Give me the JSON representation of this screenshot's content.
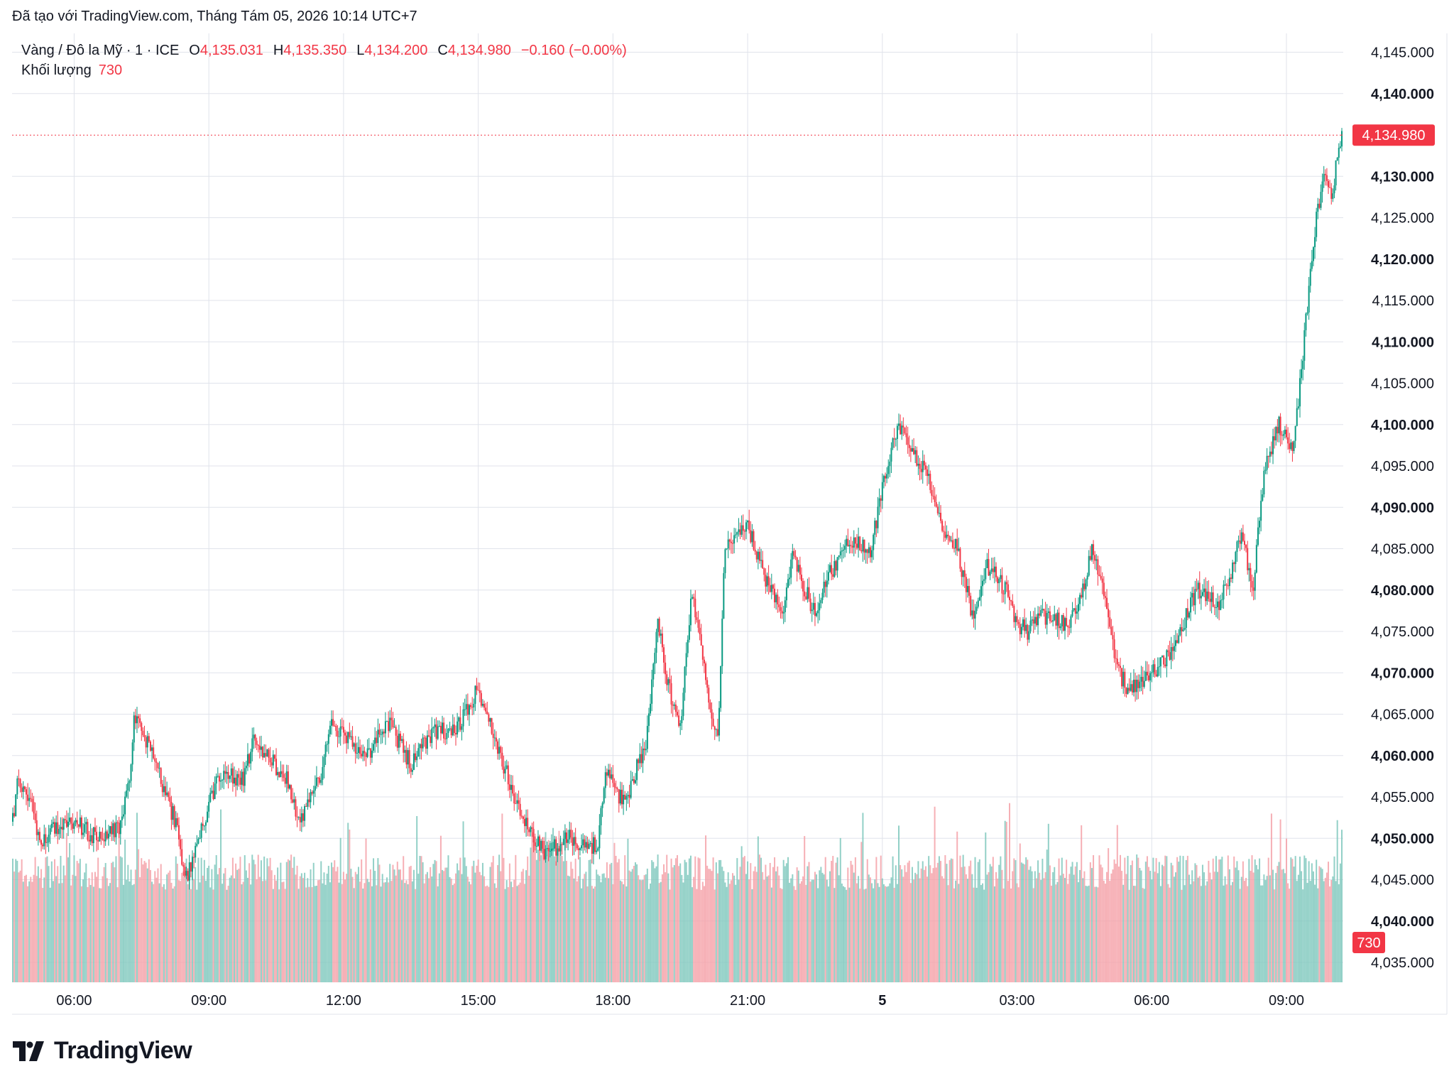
{
  "header": {
    "caption": "Đã tạo với TradingView.com, Tháng Tám 05, 2026 10:14 UTC+7"
  },
  "legend": {
    "symbol": "Vàng / Đô la Mỹ · 1 · ICE",
    "o_label": "O",
    "o_value": "4,135.031",
    "h_label": "H",
    "h_value": "4,135.350",
    "l_label": "L",
    "l_value": "4,134.200",
    "c_label": "C",
    "c_value": "4,134.980",
    "change": "−0.160 (−0.00%)",
    "volume_label": "Khối lượng",
    "volume_value": "730"
  },
  "brand": {
    "name": "TradingView",
    "logo_icon": "tradingview-logo-icon"
  },
  "colors": {
    "up": "#089981",
    "down": "#f23645",
    "grid": "#e0e3eb",
    "text": "#131722",
    "price_tag": "#f23645"
  },
  "chart_data": {
    "type": "candlestick",
    "series_type": "OHLC candlestick with volume histogram",
    "interval": "1 minute",
    "x_ticks": [
      "06:00",
      "09:00",
      "12:00",
      "15:00",
      "18:00",
      "21:00",
      "5",
      "03:00",
      "06:00",
      "09:00"
    ],
    "y_ticks": [
      "4,145.000",
      "4,140.000",
      "4,130.000",
      "4,125.000",
      "4,120.000",
      "4,115.000",
      "4,110.000",
      "4,105.000",
      "4,100.000",
      "4,095.000",
      "4,090.000",
      "4,085.000",
      "4,080.000",
      "4,075.000",
      "4,070.000",
      "4,065.000",
      "4,060.000",
      "4,055.000",
      "4,050.000",
      "4,045.000",
      "4,040.000",
      "4,035.000"
    ],
    "bold_ticks": [
      "4,140.000",
      "4,130.000",
      "4,120.000",
      "4,110.000",
      "4,100.000",
      "4,090.000",
      "4,080.000",
      "4,070.000",
      "4,060.000",
      "4,050.000",
      "4,040.000"
    ],
    "ylim": [
      4034.5,
      4146.5
    ],
    "last_price": 4134.98,
    "last_price_label": "4,134.980",
    "last_volume_label": "730",
    "close_path": [
      {
        "t": "04:38",
        "close": 4052
      },
      {
        "t": "04:45",
        "close": 4057
      },
      {
        "t": "05:00",
        "close": 4055
      },
      {
        "t": "05:15",
        "close": 4049
      },
      {
        "t": "05:30",
        "close": 4051
      },
      {
        "t": "06:00",
        "close": 4052
      },
      {
        "t": "06:30",
        "close": 4050
      },
      {
        "t": "07:00",
        "close": 4051
      },
      {
        "t": "07:15",
        "close": 4058
      },
      {
        "t": "07:20",
        "close": 4065
      },
      {
        "t": "07:45",
        "close": 4060
      },
      {
        "t": "08:15",
        "close": 4052
      },
      {
        "t": "08:30",
        "close": 4045
      },
      {
        "t": "08:45",
        "close": 4050
      },
      {
        "t": "09:15",
        "close": 4058
      },
      {
        "t": "09:45",
        "close": 4057
      },
      {
        "t": "10:00",
        "close": 4062
      },
      {
        "t": "10:45",
        "close": 4057
      },
      {
        "t": "11:00",
        "close": 4052
      },
      {
        "t": "11:30",
        "close": 4058
      },
      {
        "t": "11:45",
        "close": 4064
      },
      {
        "t": "12:30",
        "close": 4060
      },
      {
        "t": "13:00",
        "close": 4064
      },
      {
        "t": "13:30",
        "close": 4059
      },
      {
        "t": "14:00",
        "close": 4063
      },
      {
        "t": "14:30",
        "close": 4063
      },
      {
        "t": "15:00",
        "close": 4068
      },
      {
        "t": "15:30",
        "close": 4060
      },
      {
        "t": "16:00",
        "close": 4052
      },
      {
        "t": "16:30",
        "close": 4048
      },
      {
        "t": "17:00",
        "close": 4050
      },
      {
        "t": "17:40",
        "close": 4049
      },
      {
        "t": "17:50",
        "close": 4058
      },
      {
        "t": "18:15",
        "close": 4054
      },
      {
        "t": "18:45",
        "close": 4062
      },
      {
        "t": "19:00",
        "close": 4076
      },
      {
        "t": "19:15",
        "close": 4068
      },
      {
        "t": "19:30",
        "close": 4063
      },
      {
        "t": "19:45",
        "close": 4080
      },
      {
        "t": "20:10",
        "close": 4066
      },
      {
        "t": "20:20",
        "close": 4062
      },
      {
        "t": "20:30",
        "close": 4086
      },
      {
        "t": "21:00",
        "close": 4088
      },
      {
        "t": "21:20",
        "close": 4082
      },
      {
        "t": "21:45",
        "close": 4077
      },
      {
        "t": "22:00",
        "close": 4084
      },
      {
        "t": "22:30",
        "close": 4077
      },
      {
        "t": "22:50",
        "close": 4082
      },
      {
        "t": "23:15",
        "close": 4086
      },
      {
        "t": "23:45",
        "close": 4085
      },
      {
        "t": "00:00",
        "close": 4092
      },
      {
        "t": "00:20",
        "close": 4100
      },
      {
        "t": "00:40",
        "close": 4097
      },
      {
        "t": "01:00",
        "close": 4094
      },
      {
        "t": "01:20",
        "close": 4088
      },
      {
        "t": "01:40",
        "close": 4085
      },
      {
        "t": "02:00",
        "close": 4077
      },
      {
        "t": "02:20",
        "close": 4083
      },
      {
        "t": "02:45",
        "close": 4080
      },
      {
        "t": "03:00",
        "close": 4076
      },
      {
        "t": "03:15",
        "close": 4075
      },
      {
        "t": "03:30",
        "close": 4077
      },
      {
        "t": "04:00",
        "close": 4076
      },
      {
        "t": "04:20",
        "close": 4077
      },
      {
        "t": "04:40",
        "close": 4085
      },
      {
        "t": "05:00",
        "close": 4078
      },
      {
        "t": "05:15",
        "close": 4070
      },
      {
        "t": "05:30",
        "close": 4068
      },
      {
        "t": "06:00",
        "close": 4070
      },
      {
        "t": "06:30",
        "close": 4073
      },
      {
        "t": "07:00",
        "close": 4080
      },
      {
        "t": "07:30",
        "close": 4078
      },
      {
        "t": "07:45",
        "close": 4082
      },
      {
        "t": "08:00",
        "close": 4087
      },
      {
        "t": "08:15",
        "close": 4080
      },
      {
        "t": "08:30",
        "close": 4094
      },
      {
        "t": "08:50",
        "close": 4100
      },
      {
        "t": "09:10",
        "close": 4097
      },
      {
        "t": "09:20",
        "close": 4107
      },
      {
        "t": "09:40",
        "close": 4125
      },
      {
        "t": "09:50",
        "close": 4130
      },
      {
        "t": "10:00",
        "close": 4128
      },
      {
        "t": "10:14",
        "close": 4134.98
      }
    ],
    "volume_pattern": "roughly 650–900 per minute with spikes up to ~1150; last bar 730"
  }
}
